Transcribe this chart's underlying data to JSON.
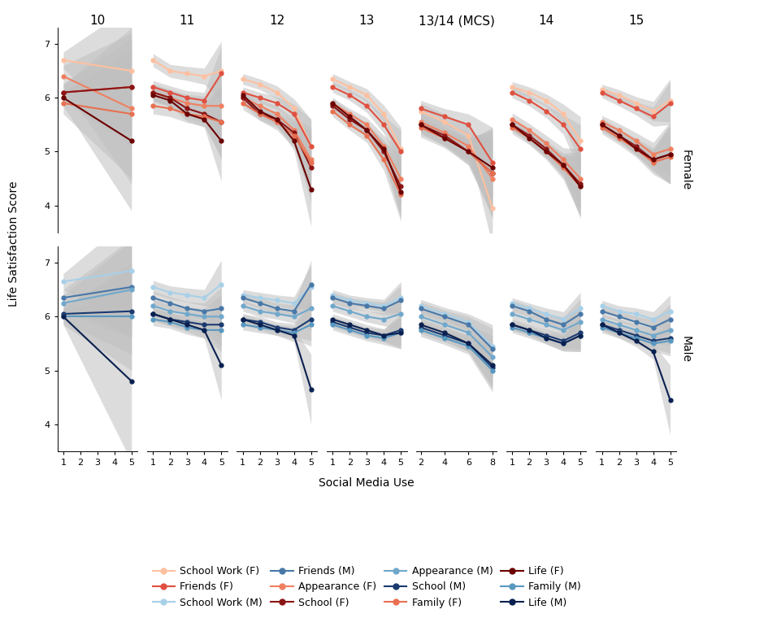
{
  "panel_ages": [
    "10",
    "11",
    "12",
    "13",
    "13/14 (MCS)",
    "14",
    "15"
  ],
  "panel_xticks": [
    [
      1,
      2,
      3,
      4,
      5
    ],
    [
      1,
      2,
      3,
      4,
      5
    ],
    [
      1,
      2,
      3,
      4,
      5
    ],
    [
      1,
      2,
      3,
      4,
      5
    ],
    [
      2,
      4,
      6,
      8
    ],
    [
      1,
      2,
      3,
      4,
      5
    ],
    [
      1,
      2,
      3,
      4,
      5
    ]
  ],
  "female_colors": {
    "school_work": "#FFC0A0",
    "friends": "#E05040",
    "appearance": "#F08060",
    "school": "#8B1515",
    "family": "#E87050",
    "life": "#6B0000"
  },
  "male_colors": {
    "school_work": "#A8D0E8",
    "friends": "#4878A8",
    "appearance": "#70A8CC",
    "school": "#1A3A70",
    "family": "#5898C0",
    "life": "#0A2050"
  },
  "ci_color": "#C0C0C0",
  "ci_alpha": 0.55,
  "female_data": {
    "age10": {
      "x": [
        1,
        5
      ],
      "school_work": [
        6.7,
        6.5
      ],
      "friends": [
        6.1,
        6.2
      ],
      "appearance": [
        6.4,
        5.8
      ],
      "school": [
        6.1,
        6.2
      ],
      "family": [
        5.9,
        5.7
      ],
      "life": [
        6.0,
        5.2
      ],
      "school_work_ci": [
        0.15,
        1.2
      ],
      "friends_ci": [
        0.15,
        1.1
      ],
      "appearance_ci": [
        0.2,
        1.4
      ],
      "school_ci": [
        0.15,
        0.9
      ],
      "family_ci": [
        0.2,
        1.2
      ],
      "life_ci": [
        0.15,
        1.3
      ]
    },
    "age11": {
      "x": [
        1,
        2,
        3,
        4,
        5
      ],
      "school_work": [
        6.7,
        6.5,
        6.45,
        6.4,
        6.5
      ],
      "friends": [
        6.2,
        6.1,
        6.0,
        5.95,
        6.45
      ],
      "appearance": [
        6.1,
        6.0,
        5.9,
        5.85,
        5.85
      ],
      "school": [
        6.1,
        6.0,
        5.8,
        5.7,
        5.55
      ],
      "family": [
        5.85,
        5.8,
        5.7,
        5.65,
        5.55
      ],
      "life": [
        6.05,
        5.95,
        5.7,
        5.6,
        5.2
      ],
      "school_work_ci": [
        0.12,
        0.12,
        0.13,
        0.15,
        0.55
      ],
      "friends_ci": [
        0.12,
        0.12,
        0.13,
        0.15,
        0.5
      ],
      "appearance_ci": [
        0.15,
        0.15,
        0.16,
        0.18,
        0.6
      ],
      "school_ci": [
        0.15,
        0.15,
        0.16,
        0.18,
        0.7
      ],
      "family_ci": [
        0.15,
        0.15,
        0.16,
        0.18,
        0.65
      ],
      "life_ci": [
        0.12,
        0.12,
        0.13,
        0.15,
        0.75
      ]
    },
    "age12": {
      "x": [
        1,
        2,
        3,
        4,
        5
      ],
      "school_work": [
        6.35,
        6.25,
        6.1,
        5.8,
        5.1
      ],
      "friends": [
        6.1,
        6.0,
        5.9,
        5.7,
        5.1
      ],
      "appearance": [
        6.0,
        5.85,
        5.7,
        5.4,
        4.85
      ],
      "school": [
        6.0,
        5.7,
        5.6,
        5.35,
        4.7
      ],
      "family": [
        5.9,
        5.7,
        5.55,
        5.3,
        4.8
      ],
      "life": [
        6.05,
        5.75,
        5.6,
        5.2,
        4.3
      ],
      "school_work_ci": [
        0.1,
        0.1,
        0.12,
        0.18,
        0.5
      ],
      "friends_ci": [
        0.1,
        0.1,
        0.12,
        0.18,
        0.5
      ],
      "appearance_ci": [
        0.12,
        0.12,
        0.15,
        0.22,
        0.6
      ],
      "school_ci": [
        0.12,
        0.12,
        0.15,
        0.22,
        0.65
      ],
      "family_ci": [
        0.12,
        0.12,
        0.15,
        0.22,
        0.6
      ],
      "life_ci": [
        0.1,
        0.1,
        0.12,
        0.18,
        0.7
      ]
    },
    "age13": {
      "x": [
        1,
        2,
        3,
        4,
        5
      ],
      "school_work": [
        6.35,
        6.2,
        6.05,
        5.7,
        5.05
      ],
      "friends": [
        6.2,
        6.05,
        5.85,
        5.5,
        5.0
      ],
      "appearance": [
        5.9,
        5.7,
        5.5,
        5.1,
        4.5
      ],
      "school": [
        5.85,
        5.6,
        5.4,
        5.0,
        4.35
      ],
      "family": [
        5.75,
        5.5,
        5.3,
        4.85,
        4.2
      ],
      "life": [
        5.9,
        5.65,
        5.4,
        5.05,
        4.25
      ],
      "school_work_ci": [
        0.1,
        0.1,
        0.12,
        0.16,
        0.4
      ],
      "friends_ci": [
        0.1,
        0.1,
        0.12,
        0.16,
        0.4
      ],
      "appearance_ci": [
        0.1,
        0.1,
        0.13,
        0.2,
        0.5
      ],
      "school_ci": [
        0.1,
        0.1,
        0.13,
        0.2,
        0.55
      ],
      "family_ci": [
        0.1,
        0.1,
        0.13,
        0.2,
        0.5
      ],
      "life_ci": [
        0.1,
        0.1,
        0.12,
        0.16,
        0.5
      ]
    },
    "age1314": {
      "x": [
        2,
        4,
        6,
        8
      ],
      "school_work": [
        5.75,
        5.55,
        5.3,
        3.95
      ],
      "friends": [
        5.8,
        5.65,
        5.5,
        4.8
      ],
      "appearance": [
        5.55,
        5.35,
        5.1,
        4.5
      ],
      "school": [
        5.5,
        5.3,
        5.0,
        4.6
      ],
      "family": [
        5.45,
        5.25,
        5.0,
        4.6
      ],
      "life": [
        5.5,
        5.25,
        5.0,
        4.7
      ],
      "school_work_ci": [
        0.15,
        0.15,
        0.2,
        0.7
      ],
      "friends_ci": [
        0.15,
        0.15,
        0.2,
        0.65
      ],
      "appearance_ci": [
        0.18,
        0.18,
        0.25,
        0.75
      ],
      "school_ci": [
        0.18,
        0.18,
        0.25,
        0.8
      ],
      "family_ci": [
        0.18,
        0.18,
        0.25,
        0.8
      ],
      "life_ci": [
        0.15,
        0.15,
        0.2,
        0.75
      ]
    },
    "age14": {
      "x": [
        1,
        2,
        3,
        4,
        5
      ],
      "school_work": [
        6.2,
        6.1,
        5.95,
        5.7,
        5.2
      ],
      "friends": [
        6.1,
        5.95,
        5.75,
        5.5,
        5.05
      ],
      "appearance": [
        5.6,
        5.4,
        5.15,
        4.85,
        4.5
      ],
      "school": [
        5.5,
        5.3,
        5.05,
        4.75,
        4.4
      ],
      "family": [
        5.45,
        5.25,
        5.0,
        4.7,
        4.35
      ],
      "life": [
        5.5,
        5.25,
        5.0,
        4.75,
        4.35
      ],
      "school_work_ci": [
        0.1,
        0.1,
        0.12,
        0.18,
        0.45
      ],
      "friends_ci": [
        0.1,
        0.1,
        0.12,
        0.18,
        0.45
      ],
      "appearance_ci": [
        0.12,
        0.12,
        0.15,
        0.22,
        0.55
      ],
      "school_ci": [
        0.12,
        0.12,
        0.15,
        0.22,
        0.6
      ],
      "family_ci": [
        0.12,
        0.12,
        0.15,
        0.22,
        0.55
      ],
      "life_ci": [
        0.1,
        0.1,
        0.12,
        0.18,
        0.6
      ]
    },
    "age15": {
      "x": [
        1,
        2,
        3,
        4,
        5
      ],
      "school_work": [
        6.15,
        6.05,
        5.9,
        5.75,
        5.95
      ],
      "friends": [
        6.1,
        5.95,
        5.8,
        5.65,
        5.9
      ],
      "appearance": [
        5.55,
        5.4,
        5.2,
        4.95,
        5.05
      ],
      "school": [
        5.5,
        5.3,
        5.1,
        4.85,
        4.95
      ],
      "family": [
        5.45,
        5.25,
        5.05,
        4.8,
        4.9
      ],
      "life": [
        5.5,
        5.3,
        5.05,
        4.85,
        4.95
      ],
      "school_work_ci": [
        0.1,
        0.1,
        0.12,
        0.18,
        0.4
      ],
      "friends_ci": [
        0.1,
        0.1,
        0.12,
        0.18,
        0.4
      ],
      "appearance_ci": [
        0.12,
        0.12,
        0.15,
        0.22,
        0.5
      ],
      "school_ci": [
        0.12,
        0.12,
        0.15,
        0.22,
        0.55
      ],
      "family_ci": [
        0.12,
        0.12,
        0.15,
        0.22,
        0.5
      ],
      "life_ci": [
        0.1,
        0.1,
        0.12,
        0.18,
        0.55
      ]
    }
  },
  "male_data": {
    "age10": {
      "x": [
        1,
        5
      ],
      "school_work": [
        6.65,
        6.85
      ],
      "friends": [
        6.35,
        6.55
      ],
      "appearance": [
        6.25,
        6.5
      ],
      "school": [
        6.05,
        6.1
      ],
      "family": [
        6.0,
        6.0
      ],
      "life": [
        6.0,
        4.8
      ],
      "school_work_ci": [
        0.15,
        1.0
      ],
      "friends_ci": [
        0.15,
        0.9
      ],
      "appearance_ci": [
        0.15,
        0.9
      ],
      "school_ci": [
        0.15,
        0.8
      ],
      "family_ci": [
        0.15,
        1.0
      ],
      "life_ci": [
        0.15,
        1.5
      ]
    },
    "age11": {
      "x": [
        1,
        2,
        3,
        4,
        5
      ],
      "school_work": [
        6.55,
        6.45,
        6.4,
        6.35,
        6.6
      ],
      "friends": [
        6.35,
        6.25,
        6.15,
        6.1,
        6.15
      ],
      "appearance": [
        6.2,
        6.1,
        6.05,
        6.0,
        6.0
      ],
      "school": [
        6.05,
        5.95,
        5.9,
        5.85,
        5.85
      ],
      "family": [
        5.95,
        5.9,
        5.8,
        5.75,
        5.75
      ],
      "life": [
        6.05,
        5.95,
        5.85,
        5.75,
        5.1
      ],
      "school_work_ci": [
        0.12,
        0.12,
        0.13,
        0.15,
        0.45
      ],
      "friends_ci": [
        0.12,
        0.12,
        0.13,
        0.15,
        0.4
      ],
      "appearance_ci": [
        0.12,
        0.12,
        0.13,
        0.15,
        0.4
      ],
      "school_ci": [
        0.12,
        0.12,
        0.13,
        0.15,
        0.4
      ],
      "family_ci": [
        0.12,
        0.12,
        0.13,
        0.15,
        0.4
      ],
      "life_ci": [
        0.12,
        0.12,
        0.13,
        0.15,
        0.65
      ]
    },
    "age12": {
      "x": [
        1,
        2,
        3,
        4,
        5
      ],
      "school_work": [
        6.4,
        6.35,
        6.3,
        6.25,
        6.55
      ],
      "friends": [
        6.35,
        6.25,
        6.15,
        6.1,
        6.6
      ],
      "appearance": [
        6.2,
        6.1,
        6.05,
        6.0,
        6.15
      ],
      "school": [
        5.95,
        5.9,
        5.8,
        5.75,
        5.95
      ],
      "family": [
        5.85,
        5.8,
        5.75,
        5.7,
        5.85
      ],
      "life": [
        5.95,
        5.85,
        5.75,
        5.65,
        4.65
      ],
      "school_work_ci": [
        0.1,
        0.1,
        0.1,
        0.12,
        0.4
      ],
      "friends_ci": [
        0.1,
        0.1,
        0.1,
        0.12,
        0.45
      ],
      "appearance_ci": [
        0.1,
        0.1,
        0.1,
        0.12,
        0.4
      ],
      "school_ci": [
        0.1,
        0.1,
        0.1,
        0.12,
        0.4
      ],
      "family_ci": [
        0.1,
        0.1,
        0.1,
        0.12,
        0.4
      ],
      "life_ci": [
        0.1,
        0.1,
        0.1,
        0.12,
        0.65
      ]
    },
    "age13": {
      "x": [
        1,
        2,
        3,
        4,
        5
      ],
      "school_work": [
        6.4,
        6.3,
        6.25,
        6.2,
        6.35
      ],
      "friends": [
        6.35,
        6.25,
        6.2,
        6.15,
        6.3
      ],
      "appearance": [
        6.2,
        6.1,
        6.0,
        5.95,
        6.05
      ],
      "school": [
        5.9,
        5.8,
        5.7,
        5.65,
        5.75
      ],
      "family": [
        5.85,
        5.75,
        5.65,
        5.6,
        5.7
      ],
      "life": [
        5.95,
        5.85,
        5.75,
        5.65,
        5.7
      ],
      "school_work_ci": [
        0.1,
        0.1,
        0.1,
        0.12,
        0.3
      ],
      "friends_ci": [
        0.1,
        0.1,
        0.1,
        0.12,
        0.28
      ],
      "appearance_ci": [
        0.1,
        0.1,
        0.1,
        0.12,
        0.3
      ],
      "school_ci": [
        0.1,
        0.1,
        0.1,
        0.12,
        0.3
      ],
      "family_ci": [
        0.1,
        0.1,
        0.1,
        0.12,
        0.3
      ],
      "life_ci": [
        0.1,
        0.1,
        0.1,
        0.12,
        0.3
      ]
    },
    "age1314": {
      "x": [
        2,
        4,
        6,
        8
      ],
      "school_work": [
        6.2,
        6.05,
        5.9,
        5.45
      ],
      "friends": [
        6.15,
        6.0,
        5.85,
        5.4
      ],
      "appearance": [
        6.0,
        5.85,
        5.7,
        5.25
      ],
      "school": [
        5.8,
        5.65,
        5.5,
        5.05
      ],
      "family": [
        5.75,
        5.6,
        5.45,
        5.0
      ],
      "life": [
        5.85,
        5.7,
        5.5,
        5.1
      ],
      "school_work_ci": [
        0.12,
        0.12,
        0.15,
        0.4
      ],
      "friends_ci": [
        0.12,
        0.12,
        0.15,
        0.38
      ],
      "appearance_ci": [
        0.12,
        0.12,
        0.15,
        0.4
      ],
      "school_ci": [
        0.12,
        0.12,
        0.15,
        0.4
      ],
      "family_ci": [
        0.12,
        0.12,
        0.15,
        0.4
      ],
      "life_ci": [
        0.12,
        0.12,
        0.15,
        0.4
      ]
    },
    "age14": {
      "x": [
        1,
        2,
        3,
        4,
        5
      ],
      "school_work": [
        6.25,
        6.15,
        6.05,
        5.95,
        6.15
      ],
      "friends": [
        6.2,
        6.1,
        5.95,
        5.85,
        6.05
      ],
      "appearance": [
        6.05,
        5.95,
        5.85,
        5.75,
        5.9
      ],
      "school": [
        5.85,
        5.75,
        5.65,
        5.55,
        5.7
      ],
      "family": [
        5.8,
        5.7,
        5.6,
        5.5,
        5.65
      ],
      "life": [
        5.85,
        5.75,
        5.6,
        5.5,
        5.65
      ],
      "school_work_ci": [
        0.1,
        0.1,
        0.11,
        0.14,
        0.3
      ],
      "friends_ci": [
        0.1,
        0.1,
        0.11,
        0.14,
        0.28
      ],
      "appearance_ci": [
        0.1,
        0.1,
        0.11,
        0.14,
        0.3
      ],
      "school_ci": [
        0.1,
        0.1,
        0.11,
        0.14,
        0.3
      ],
      "family_ci": [
        0.1,
        0.1,
        0.11,
        0.14,
        0.3
      ],
      "life_ci": [
        0.1,
        0.1,
        0.11,
        0.14,
        0.3
      ]
    },
    "age15": {
      "x": [
        1,
        2,
        3,
        4,
        5
      ],
      "school_work": [
        6.2,
        6.1,
        6.05,
        5.95,
        6.1
      ],
      "friends": [
        6.1,
        6.0,
        5.9,
        5.8,
        5.95
      ],
      "appearance": [
        5.95,
        5.85,
        5.75,
        5.65,
        5.75
      ],
      "school": [
        5.85,
        5.75,
        5.65,
        5.55,
        5.6
      ],
      "family": [
        5.8,
        5.7,
        5.6,
        5.5,
        5.55
      ],
      "life": [
        5.85,
        5.7,
        5.55,
        5.35,
        4.45
      ],
      "school_work_ci": [
        0.1,
        0.1,
        0.11,
        0.14,
        0.3
      ],
      "friends_ci": [
        0.1,
        0.1,
        0.11,
        0.14,
        0.28
      ],
      "appearance_ci": [
        0.1,
        0.1,
        0.11,
        0.14,
        0.28
      ],
      "school_ci": [
        0.1,
        0.1,
        0.11,
        0.14,
        0.28
      ],
      "family_ci": [
        0.1,
        0.1,
        0.11,
        0.14,
        0.28
      ],
      "life_ci": [
        0.1,
        0.1,
        0.11,
        0.14,
        0.65
      ]
    }
  },
  "ylabel": "Life Satisfaction Score",
  "xlabel": "Social Media Use",
  "ylim": [
    3.5,
    7.3
  ],
  "yticks": [
    4,
    5,
    6,
    7
  ],
  "background_color": "#ffffff",
  "panel_label_fontsize": 11,
  "axis_fontsize": 10,
  "tick_fontsize": 8,
  "legend_fontsize": 9
}
